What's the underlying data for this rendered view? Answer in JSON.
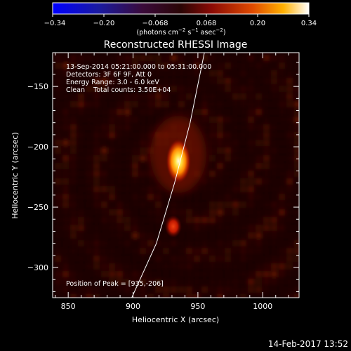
{
  "colorbar": {
    "ticks": [
      "−0.34",
      "−0.20",
      "−0.068",
      "0.068",
      "0.20",
      "0.34"
    ],
    "unit_label": "(photons cm",
    "unit_sup1": "−2",
    "unit_mid": " s",
    "unit_sup2": "−1",
    "unit_end": " asec",
    "unit_sup3": "−2",
    "unit_close": ")"
  },
  "chart_data": {
    "type": "heatmap",
    "title": "Reconstructed RHESSI Image",
    "xlabel": "Heliocentric X (arcsec)",
    "ylabel": "Heliocentric Y (arcsec)",
    "xlim": [
      838,
      1028
    ],
    "ylim": [
      -325,
      -122
    ],
    "x_ticks": [
      850,
      900,
      950,
      1000
    ],
    "y_ticks": [
      -150,
      -200,
      -250,
      -300
    ],
    "x_tick_labels": [
      "850",
      "900",
      "950",
      "1000"
    ],
    "y_tick_labels": [
      "−150",
      "−200",
      "−250",
      "−300"
    ],
    "colorbar_range": [
      -0.34,
      0.34
    ],
    "sources": [
      {
        "x": 935,
        "y": -206,
        "intensity": 0.34
      },
      {
        "x": 931,
        "y": -266,
        "intensity": 0.2
      }
    ],
    "limb_curve": [
      [
        899,
        -325
      ],
      [
        918,
        -280
      ],
      [
        932,
        -230
      ],
      [
        944,
        -180
      ],
      [
        955,
        -122
      ]
    ],
    "annotations": [
      "13-Sep-2014 05:21:00.000 to 05:31:00.000",
      "Detectors: 3F 6F 9F, Att 0",
      "Energy Range: 3.0 - 6.0 keV",
      "Clean    Total counts: 3.50E+04"
    ],
    "peak_label": "Position of Peak = [935,-206]"
  },
  "footer": {
    "date": "14-Feb-2017 13:52"
  }
}
